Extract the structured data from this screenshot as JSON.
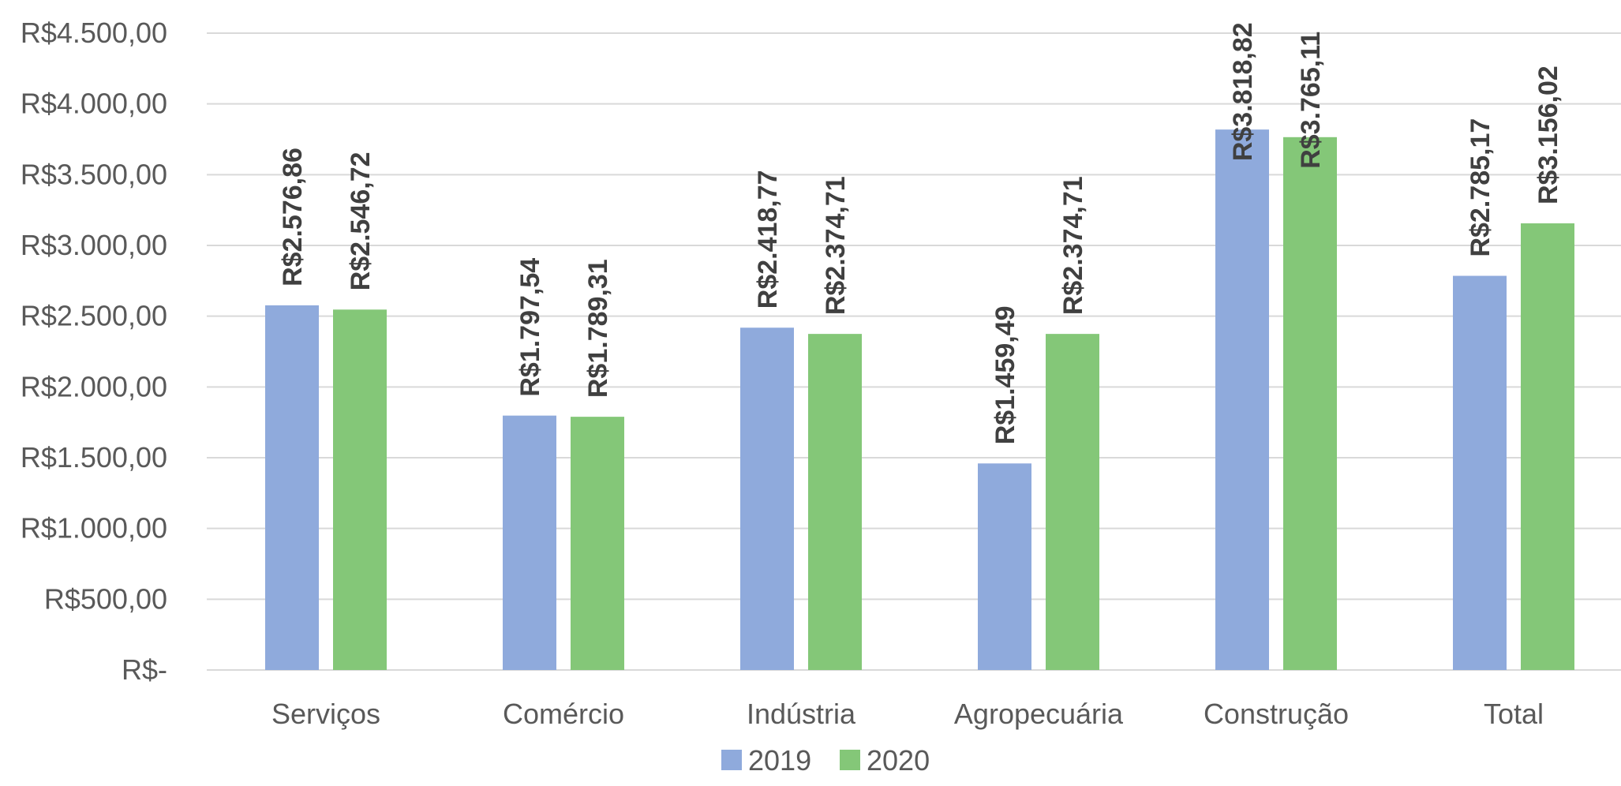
{
  "chart_data": {
    "type": "bar",
    "title": "",
    "xlabel": "",
    "ylabel": "",
    "ylim": [
      0,
      4500
    ],
    "yticks": [
      0,
      500,
      1000,
      1500,
      2000,
      2500,
      3000,
      3500,
      4000,
      4500
    ],
    "ytick_labels": [
      "R$-",
      "R$500,00",
      "R$1.000,00",
      "R$1.500,00",
      "R$2.000,00",
      "R$2.500,00",
      "R$3.000,00",
      "R$3.500,00",
      "R$4.000,00",
      "R$4.500,00"
    ],
    "categories": [
      "Serviços",
      "Comércio",
      "Indústria",
      "Agropecuária",
      "Construção",
      "Total"
    ],
    "series": [
      {
        "name": "2019",
        "color": "#8FAADC",
        "values": [
          2576.86,
          1797.54,
          2418.77,
          1459.49,
          3818.82,
          2785.17
        ],
        "labels": [
          "R$2.576,86",
          "R$1.797,54",
          "R$2.418,77",
          "R$1.459,49",
          "R$3.818,82",
          "R$2.785,17"
        ]
      },
      {
        "name": "2020",
        "color": "#84C778",
        "values": [
          2546.72,
          1789.31,
          2374.71,
          2374.71,
          3765.11,
          3156.02
        ],
        "labels": [
          "R$2.546,72",
          "R$1.789,31",
          "R$2.374,71",
          "R$2.374,71",
          "R$3.765,11",
          "R$3.156,02"
        ]
      }
    ],
    "grid": true,
    "gridline_color": "#D9D9D9",
    "legend": "bottom"
  }
}
